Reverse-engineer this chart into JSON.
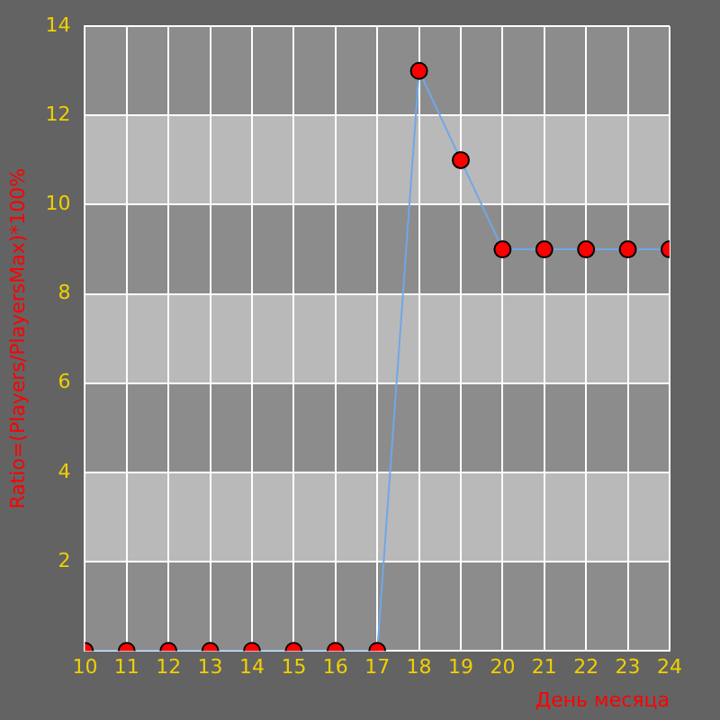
{
  "chart_data": {
    "type": "line",
    "xlabel": "День месяца",
    "ylabel": "Ratio=(Players/PlayersMax)*100%",
    "x": [
      10,
      11,
      12,
      13,
      14,
      15,
      16,
      17,
      18,
      19,
      20,
      21,
      22,
      23,
      24
    ],
    "series": [
      {
        "color": "#6fa8e8",
        "values": [
          0,
          0,
          0,
          0,
          0,
          0,
          0,
          0,
          13,
          11,
          9,
          9,
          9,
          9,
          9
        ]
      }
    ],
    "xlim": [
      10,
      24
    ],
    "xticks": [
      10,
      11,
      12,
      13,
      14,
      15,
      16,
      17,
      18,
      19,
      20,
      21,
      22,
      23,
      24
    ],
    "ylim": [
      0,
      14
    ],
    "yticks": [
      {
        "value": 0,
        "label": null
      },
      2,
      4,
      6,
      8,
      10,
      12,
      14
    ],
    "grid": true,
    "legend": false,
    "marker": "circle",
    "line_style": "solid"
  }
}
